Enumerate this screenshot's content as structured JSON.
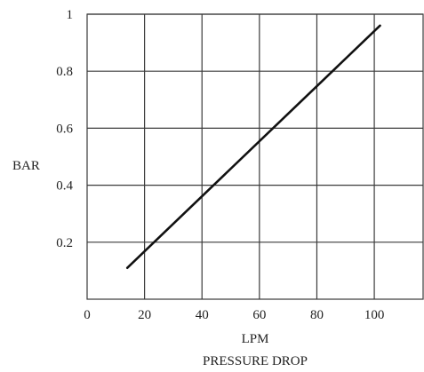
{
  "chart_data": {
    "type": "line",
    "title": "PRESSURE DROP",
    "xlabel": "LPM",
    "ylabel": "BAR",
    "xlim": [
      0,
      117
    ],
    "ylim": [
      0,
      1
    ],
    "x_ticks": [
      0,
      20,
      40,
      60,
      80,
      100
    ],
    "y_ticks": [
      0.2,
      0.4,
      0.6,
      0.8,
      1
    ],
    "x_tick_labels": [
      "0",
      "20",
      "40",
      "60",
      "80",
      "100"
    ],
    "y_tick_labels": [
      "0.2",
      "0.4",
      "0.6",
      "0.8",
      "1"
    ],
    "grid": true,
    "series": [
      {
        "x": [
          14,
          102
        ],
        "y": [
          0.11,
          0.96
        ],
        "color": "#111111"
      }
    ]
  }
}
